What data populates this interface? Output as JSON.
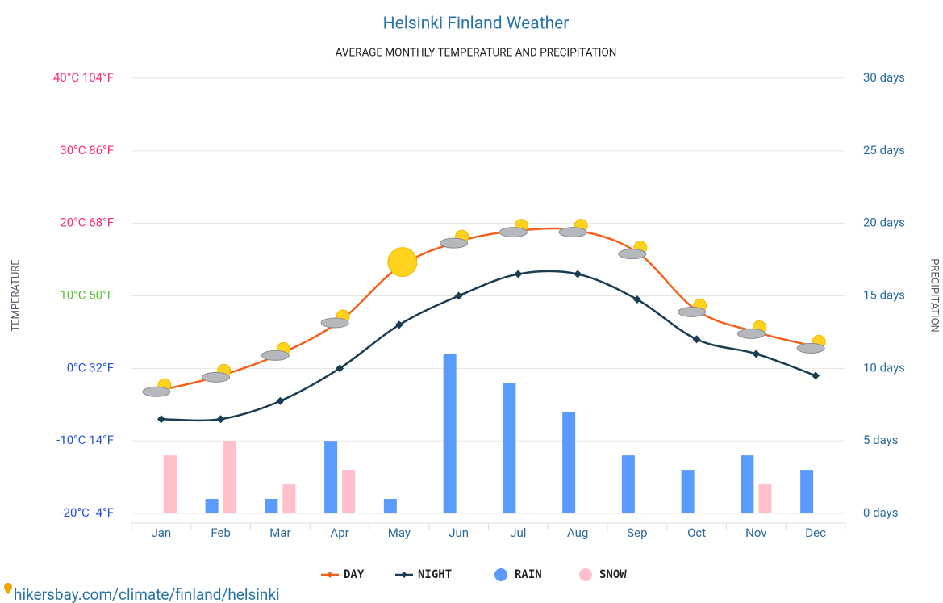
{
  "chart_data": {
    "type": "combo",
    "title": "Helsinki Finland Weather",
    "subtitle": "AVERAGE MONTHLY TEMPERATURE AND PRECIPITATION",
    "y_label": "TEMPERATURE",
    "y2_label": "PRECIPITATION",
    "source": "hikersbay.com/climate/finland/helsinki",
    "categories": [
      "Jan",
      "Feb",
      "Mar",
      "Apr",
      "May",
      "Jun",
      "Jul",
      "Aug",
      "Sep",
      "Oct",
      "Nov",
      "Dec"
    ],
    "series": [
      {
        "name": "DAY",
        "type": "line",
        "color": "#f4601c",
        "values": [
          -3,
          -1,
          2,
          6.5,
          14,
          17.5,
          19,
          19,
          16,
          8,
          5,
          3
        ]
      },
      {
        "name": "NIGHT",
        "type": "line",
        "color": "#1a3d52",
        "values": [
          -7,
          -7,
          -4.5,
          0,
          6,
          10,
          13,
          13,
          9.5,
          4,
          2,
          -1
        ]
      },
      {
        "name": "RAIN",
        "type": "bar",
        "axis": "y2",
        "color": "#5b9bff",
        "values": [
          0,
          1,
          1,
          5,
          1,
          11,
          9,
          7,
          4,
          3,
          4,
          3
        ]
      },
      {
        "name": "SNOW",
        "type": "bar",
        "axis": "y2",
        "color": "#ffc0cb",
        "values": [
          4,
          5,
          2,
          3,
          0,
          0,
          0,
          0,
          0,
          0,
          2,
          0
        ]
      }
    ],
    "ylim": [
      -20,
      40
    ],
    "yticks": [
      {
        "value": -20,
        "label": "-20°C -4°F"
      },
      {
        "value": -10,
        "label": "-10°C 14°F"
      },
      {
        "value": 0,
        "label": "0°C 32°F"
      },
      {
        "value": 10,
        "label": "10°C 50°F"
      },
      {
        "value": 20,
        "label": "20°C 68°F"
      },
      {
        "value": 30,
        "label": "30°C 86°F"
      },
      {
        "value": 40,
        "label": "40°C 104°F"
      }
    ],
    "ytick_colors": [
      "#2450e0",
      "#2450e0",
      "#2450e0",
      "#5cbf3a",
      "#ff2a6d",
      "#ff2a6d",
      "#ff2a6d"
    ],
    "y2lim": [
      0,
      30
    ],
    "y2ticks": [
      {
        "value": 0,
        "label": "0 days"
      },
      {
        "value": 5,
        "label": "5 days"
      },
      {
        "value": 10,
        "label": "10 days"
      },
      {
        "value": 15,
        "label": "15 days"
      },
      {
        "value": 20,
        "label": "20 days"
      },
      {
        "value": 25,
        "label": "25 days"
      },
      {
        "value": 30,
        "label": "30 days"
      }
    ],
    "grid": true
  }
}
